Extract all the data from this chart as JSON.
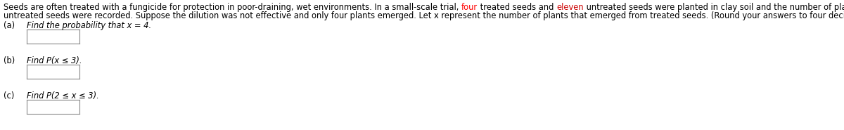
{
  "bg_color": "#ffffff",
  "text_color": "#000000",
  "red_color": "#ff0000",
  "eleven_color": "#cc0000",
  "line1_before_four": "Seeds are often treated with a fungicide for protection in poor-draining, wet environments. In a small-scale trial, ",
  "word_four": "four",
  "line1_after_four": " treated seeds and ",
  "word_eleven": "eleven",
  "line1_after_eleven": " untreated seeds were planted in clay soil and the number of plants emerging from the treated and",
  "line2": "untreated seeds were recorded. Suppose the dilution was not effective and only four plants emerged. Let x represent the number of plants that emerged from treated seeds. (Round your answers to four decimal places.)",
  "qa_label": "(a)",
  "qa_text": "Find the probability that x = 4.",
  "qb_label": "(b)",
  "qb_text": "Find P(x ≤ 3).",
  "qc_label": "(c)",
  "qc_text": "Find P(2 ≤ x ≤ 3).",
  "font_size": 8.3,
  "fig_width": 12.0,
  "fig_height": 1.85,
  "dpi": 100
}
